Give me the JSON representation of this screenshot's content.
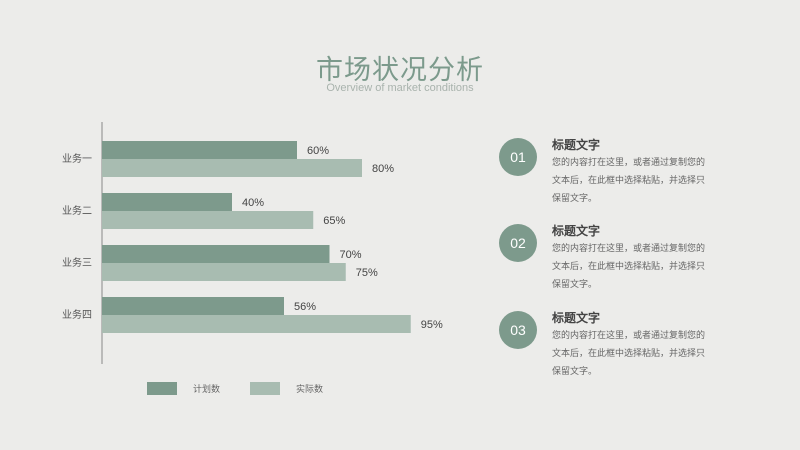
{
  "header": {
    "title": "市场状况分析",
    "subtitle": "Overview of market conditions"
  },
  "colors": {
    "planned": "#7d9a8c",
    "actual": "#a8bcb1",
    "accent": "#7d9a8c"
  },
  "chart_data": {
    "type": "bar",
    "orientation": "horizontal",
    "categories": [
      "业务一",
      "业务二",
      "业务三",
      "业务四"
    ],
    "series": [
      {
        "name": "计划数",
        "values": [
          60,
          40,
          70,
          56
        ],
        "labels": [
          "60%",
          "40%",
          "70%",
          "56%"
        ]
      },
      {
        "name": "实际数",
        "values": [
          80,
          65,
          75,
          95
        ],
        "labels": [
          "80%",
          "65%",
          "75%",
          "95%"
        ]
      }
    ],
    "xlim": [
      0,
      100
    ],
    "value_unit": "%",
    "grid": false,
    "legend_position": "bottom"
  },
  "legend": {
    "planned_label": "计划数",
    "actual_label": "实际数"
  },
  "items": [
    {
      "number": "01",
      "title": "标题文字",
      "body": "您的内容打在这里，或者通过复制您的文本后，在此框中选择粘贴，并选择只保留文字。"
    },
    {
      "number": "02",
      "title": "标题文字",
      "body": "您的内容打在这里，或者通过复制您的文本后，在此框中选择粘贴，并选择只保留文字。"
    },
    {
      "number": "03",
      "title": "标题文字",
      "body": "您的内容打在这里，或者通过复制您的文本后，在此框中选择粘贴，并选择只保留文字。"
    }
  ]
}
